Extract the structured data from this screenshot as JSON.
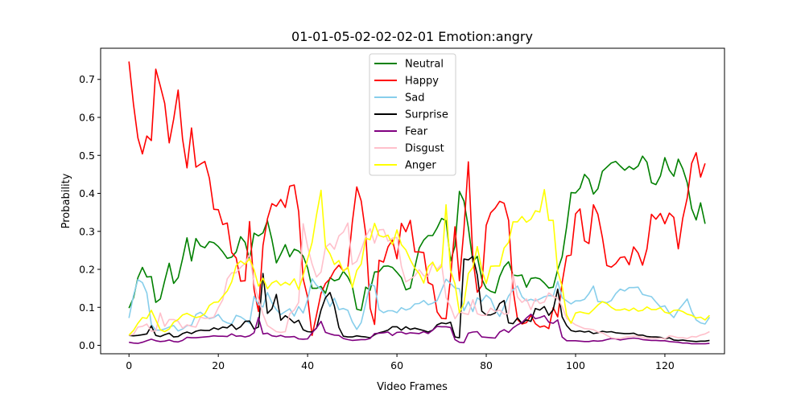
{
  "chart_data": {
    "type": "line",
    "title": "01-01-05-02-02-02-01 Emotion:angry",
    "xlabel": "Video Frames",
    "ylabel": "Probability",
    "xlim": [
      -6.35,
      133.35
    ],
    "ylim": [
      -0.0222,
      0.782
    ],
    "xticks": [
      0,
      20,
      40,
      60,
      80,
      100,
      120
    ],
    "yticks": [
      0.0,
      0.1,
      0.2,
      0.3,
      0.4,
      0.5,
      0.6,
      0.7
    ],
    "ytick_labels": [
      "0.0",
      "0.1",
      "0.2",
      "0.3",
      "0.4",
      "0.5",
      "0.6",
      "0.7"
    ],
    "legend_position": "upper center",
    "grid": false,
    "series": [
      {
        "name": "Neutral",
        "color": "#008000",
        "values": [
          0.098,
          0.125,
          0.178,
          0.205,
          0.18,
          0.181,
          0.113,
          0.122,
          0.17,
          0.216,
          0.163,
          0.178,
          0.228,
          0.283,
          0.222,
          0.281,
          0.262,
          0.257,
          0.273,
          0.27,
          0.26,
          0.246,
          0.229,
          0.232,
          0.246,
          0.286,
          0.271,
          0.225,
          0.295,
          0.288,
          0.296,
          0.328,
          0.278,
          0.217,
          0.24,
          0.265,
          0.233,
          0.253,
          0.248,
          0.235,
          0.204,
          0.15,
          0.15,
          0.155,
          0.137,
          0.178,
          0.17,
          0.174,
          0.195,
          0.18,
          0.156,
          0.095,
          0.092,
          0.153,
          0.145,
          0.193,
          0.194,
          0.208,
          0.209,
          0.205,
          0.192,
          0.178,
          0.146,
          0.151,
          0.205,
          0.256,
          0.277,
          0.289,
          0.289,
          0.309,
          0.334,
          0.328,
          0.222,
          0.261,
          0.405,
          0.38,
          0.31,
          0.22,
          0.234,
          0.175,
          0.15,
          0.142,
          0.138,
          0.181,
          0.207,
          0.22,
          0.185,
          0.183,
          0.185,
          0.153,
          0.176,
          0.178,
          0.175,
          0.164,
          0.151,
          0.153,
          0.199,
          0.233,
          0.312,
          0.402,
          0.401,
          0.414,
          0.45,
          0.437,
          0.398,
          0.412,
          0.458,
          0.469,
          0.48,
          0.484,
          0.472,
          0.461,
          0.471,
          0.463,
          0.472,
          0.498,
          0.482,
          0.428,
          0.423,
          0.446,
          0.494,
          0.461,
          0.445,
          0.49,
          0.465,
          0.428,
          0.36,
          0.33,
          0.375,
          0.32
        ]
      },
      {
        "name": "Happy",
        "color": "#ff0000",
        "values": [
          0.747,
          0.635,
          0.546,
          0.504,
          0.551,
          0.539,
          0.727,
          0.683,
          0.637,
          0.533,
          0.595,
          0.672,
          0.543,
          0.467,
          0.572,
          0.469,
          0.477,
          0.484,
          0.44,
          0.358,
          0.357,
          0.318,
          0.322,
          0.244,
          0.23,
          0.169,
          0.17,
          0.326,
          0.147,
          0.089,
          0.263,
          0.333,
          0.373,
          0.366,
          0.384,
          0.363,
          0.419,
          0.422,
          0.352,
          0.175,
          0.127,
          0.026,
          0.08,
          0.137,
          0.163,
          0.175,
          0.197,
          0.211,
          0.196,
          0.204,
          0.323,
          0.417,
          0.38,
          0.294,
          0.098,
          0.055,
          0.224,
          0.219,
          0.259,
          0.277,
          0.228,
          0.321,
          0.299,
          0.329,
          0.246,
          0.246,
          0.244,
          0.165,
          0.159,
          0.088,
          0.071,
          0.07,
          0.178,
          0.312,
          0.17,
          0.305,
          0.483,
          0.229,
          0.14,
          0.157,
          0.316,
          0.349,
          0.361,
          0.379,
          0.374,
          0.329,
          0.147,
          0.068,
          0.056,
          0.06,
          0.079,
          0.057,
          0.048,
          0.051,
          0.044,
          0.099,
          0.075,
          0.165,
          0.235,
          0.238,
          0.346,
          0.359,
          0.275,
          0.268,
          0.37,
          0.345,
          0.284,
          0.21,
          0.206,
          0.215,
          0.231,
          0.233,
          0.212,
          0.259,
          0.243,
          0.211,
          0.254,
          0.345,
          0.332,
          0.347,
          0.32,
          0.348,
          0.337,
          0.254,
          0.334,
          0.388,
          0.479,
          0.507,
          0.443,
          0.479
        ]
      },
      {
        "name": "Sad",
        "color": "#87ceeb",
        "values": [
          0.072,
          0.131,
          0.173,
          0.165,
          0.138,
          0.055,
          0.04,
          0.04,
          0.043,
          0.048,
          0.052,
          0.038,
          0.043,
          0.052,
          0.053,
          0.081,
          0.087,
          0.078,
          0.07,
          0.073,
          0.081,
          0.065,
          0.059,
          0.056,
          0.079,
          0.075,
          0.067,
          0.058,
          0.129,
          0.108,
          0.101,
          0.139,
          0.112,
          0.094,
          0.081,
          0.089,
          0.096,
          0.077,
          0.102,
          0.085,
          0.12,
          0.175,
          0.158,
          0.148,
          0.129,
          0.102,
          0.124,
          0.094,
          0.097,
          0.092,
          0.062,
          0.042,
          0.06,
          0.11,
          0.161,
          0.156,
          0.094,
          0.086,
          0.091,
          0.091,
          0.086,
          0.099,
          0.093,
          0.097,
          0.109,
          0.11,
          0.118,
          0.107,
          0.111,
          0.118,
          0.146,
          0.174,
          0.163,
          0.151,
          0.149,
          0.091,
          0.115,
          0.089,
          0.125,
          0.116,
          0.132,
          0.122,
          0.094,
          0.076,
          0.103,
          0.13,
          0.146,
          0.156,
          0.128,
          0.117,
          0.121,
          0.117,
          0.122,
          0.128,
          0.131,
          0.13,
          0.168,
          0.125,
          0.117,
          0.109,
          0.117,
          0.117,
          0.121,
          0.136,
          0.156,
          0.115,
          0.115,
          0.112,
          0.118,
          0.136,
          0.148,
          0.143,
          0.152,
          0.152,
          0.153,
          0.134,
          0.131,
          0.128,
          0.114,
          0.101,
          0.104,
          0.085,
          0.073,
          0.093,
          0.107,
          0.122,
          0.089,
          0.067,
          0.059,
          0.056,
          0.074
        ]
      },
      {
        "name": "Surprise",
        "color": "#000000",
        "values": [
          0.026,
          0.025,
          0.026,
          0.028,
          0.03,
          0.051,
          0.026,
          0.023,
          0.028,
          0.032,
          0.022,
          0.023,
          0.031,
          0.035,
          0.031,
          0.037,
          0.04,
          0.039,
          0.039,
          0.046,
          0.042,
          0.048,
          0.046,
          0.055,
          0.042,
          0.049,
          0.063,
          0.064,
          0.043,
          0.048,
          0.189,
          0.084,
          0.096,
          0.134,
          0.066,
          0.078,
          0.07,
          0.059,
          0.066,
          0.041,
          0.036,
          0.035,
          0.045,
          0.093,
          0.125,
          0.139,
          0.103,
          0.047,
          0.024,
          0.022,
          0.022,
          0.025,
          0.023,
          0.022,
          0.02,
          0.028,
          0.033,
          0.036,
          0.04,
          0.049,
          0.049,
          0.04,
          0.049,
          0.042,
          0.045,
          0.042,
          0.039,
          0.035,
          0.04,
          0.054,
          0.059,
          0.057,
          0.061,
          0.022,
          0.02,
          0.227,
          0.225,
          0.234,
          0.185,
          0.09,
          0.08,
          0.08,
          0.085,
          0.11,
          0.118,
          0.059,
          0.057,
          0.072,
          0.058,
          0.067,
          0.063,
          0.097,
          0.093,
          0.102,
          0.079,
          0.094,
          0.148,
          0.075,
          0.052,
          0.039,
          0.036,
          0.038,
          0.035,
          0.037,
          0.031,
          0.033,
          0.037,
          0.035,
          0.036,
          0.033,
          0.032,
          0.031,
          0.031,
          0.032,
          0.027,
          0.027,
          0.023,
          0.022,
          0.022,
          0.021,
          0.017,
          0.02,
          0.014,
          0.013,
          0.014,
          0.012,
          0.011,
          0.01,
          0.011,
          0.011,
          0.013
        ]
      },
      {
        "name": "Fear",
        "color": "#800080",
        "values": [
          0.008,
          0.006,
          0.005,
          0.008,
          0.012,
          0.016,
          0.012,
          0.01,
          0.011,
          0.014,
          0.01,
          0.009,
          0.013,
          0.021,
          0.02,
          0.02,
          0.021,
          0.022,
          0.023,
          0.025,
          0.024,
          0.024,
          0.023,
          0.03,
          0.024,
          0.025,
          0.022,
          0.025,
          0.033,
          0.073,
          0.03,
          0.032,
          0.025,
          0.023,
          0.026,
          0.022,
          0.022,
          0.023,
          0.017,
          0.016,
          0.017,
          0.033,
          0.046,
          0.063,
          0.034,
          0.03,
          0.027,
          0.026,
          0.018,
          0.015,
          0.013,
          0.014,
          0.015,
          0.015,
          0.018,
          0.031,
          0.032,
          0.033,
          0.035,
          0.026,
          0.034,
          0.035,
          0.03,
          0.033,
          0.032,
          0.031,
          0.036,
          0.031,
          0.04,
          0.05,
          0.049,
          0.049,
          0.047,
          0.015,
          0.008,
          0.007,
          0.032,
          0.035,
          0.036,
          0.022,
          0.021,
          0.02,
          0.019,
          0.035,
          0.041,
          0.034,
          0.046,
          0.054,
          0.06,
          0.072,
          0.082,
          0.07,
          0.073,
          0.078,
          0.061,
          0.058,
          0.067,
          0.022,
          0.012,
          0.012,
          0.012,
          0.011,
          0.01,
          0.01,
          0.012,
          0.011,
          0.012,
          0.015,
          0.018,
          0.017,
          0.014,
          0.016,
          0.018,
          0.019,
          0.018,
          0.015,
          0.014,
          0.013,
          0.013,
          0.012,
          0.012,
          0.01,
          0.009,
          0.008,
          0.006,
          0.006,
          0.004,
          0.004,
          0.004,
          0.004,
          0.005
        ]
      },
      {
        "name": "Disgust",
        "color": "#ffc0cb",
        "values": [
          0.026,
          0.029,
          0.048,
          0.05,
          0.056,
          0.037,
          0.038,
          0.085,
          0.05,
          0.068,
          0.068,
          0.063,
          0.045,
          0.054,
          0.05,
          0.048,
          0.074,
          0.071,
          0.072,
          0.074,
          0.099,
          0.12,
          0.175,
          0.191,
          0.191,
          0.205,
          0.216,
          0.24,
          0.163,
          0.122,
          0.082,
          0.052,
          0.044,
          0.036,
          0.034,
          0.036,
          0.083,
          0.093,
          0.113,
          0.32,
          0.26,
          0.214,
          0.18,
          0.193,
          0.258,
          0.268,
          0.253,
          0.288,
          0.298,
          0.322,
          0.213,
          0.221,
          0.251,
          0.286,
          0.307,
          0.269,
          0.304,
          0.305,
          0.274,
          0.282,
          0.284,
          0.208,
          0.167,
          0.174,
          0.183,
          0.199,
          0.183,
          0.182,
          0.215,
          0.2,
          0.214,
          0.126,
          0.102,
          0.07,
          0.088,
          0.084,
          0.081,
          0.12,
          0.083,
          0.079,
          0.079,
          0.098,
          0.089,
          0.093,
          0.082,
          0.084,
          0.188,
          0.127,
          0.113,
          0.122,
          0.094,
          0.123,
          0.11,
          0.114,
          0.138,
          0.129,
          0.123,
          0.102,
          0.071,
          0.062,
          0.054,
          0.049,
          0.044,
          0.043,
          0.041,
          0.035,
          0.033,
          0.026,
          0.02,
          0.018,
          0.018,
          0.021,
          0.023,
          0.024,
          0.024,
          0.021,
          0.018,
          0.019,
          0.018,
          0.019,
          0.017,
          0.025,
          0.023,
          0.02,
          0.02,
          0.018,
          0.023,
          0.022,
          0.027,
          0.03,
          0.036
        ]
      },
      {
        "name": "Anger",
        "color": "#ffff00",
        "values": [
          0.027,
          0.039,
          0.058,
          0.073,
          0.071,
          0.092,
          0.067,
          0.041,
          0.036,
          0.043,
          0.061,
          0.068,
          0.08,
          0.084,
          0.078,
          0.073,
          0.076,
          0.083,
          0.105,
          0.113,
          0.114,
          0.129,
          0.143,
          0.167,
          0.21,
          0.222,
          0.213,
          0.228,
          0.199,
          0.156,
          0.177,
          0.149,
          0.164,
          0.17,
          0.158,
          0.166,
          0.159,
          0.175,
          0.147,
          0.184,
          0.227,
          0.271,
          0.343,
          0.408,
          0.26,
          0.241,
          0.213,
          0.223,
          0.195,
          0.206,
          0.152,
          0.197,
          0.214,
          0.282,
          0.278,
          0.321,
          0.289,
          0.285,
          0.29,
          0.265,
          0.304,
          0.265,
          0.251,
          0.225,
          0.203,
          0.189,
          0.164,
          0.207,
          0.219,
          0.195,
          0.208,
          0.37,
          0.197,
          0.162,
          0.086,
          0.11,
          0.189,
          0.205,
          0.26,
          0.199,
          0.163,
          0.208,
          0.209,
          0.209,
          0.256,
          0.271,
          0.325,
          0.325,
          0.339,
          0.324,
          0.332,
          0.354,
          0.351,
          0.41,
          0.329,
          0.329,
          0.195,
          0.155,
          0.08,
          0.058,
          0.085,
          0.088,
          0.085,
          0.083,
          0.094,
          0.106,
          0.115,
          0.11,
          0.1,
          0.093,
          0.093,
          0.096,
          0.091,
          0.098,
          0.09,
          0.092,
          0.101,
          0.094,
          0.094,
          0.099,
          0.087,
          0.084,
          0.092,
          0.093,
          0.089,
          0.082,
          0.079,
          0.072,
          0.074,
          0.067,
          0.079
        ]
      }
    ]
  }
}
